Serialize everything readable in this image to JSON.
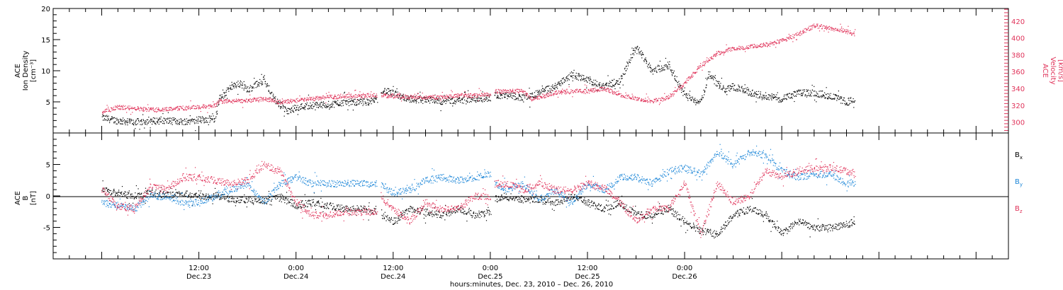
{
  "chart_data": [
    {
      "type": "scatter",
      "panel": "top",
      "ylabel_lines": [
        "ACE",
        "Ion Density",
        "[cm⁻³]"
      ],
      "y2label_lines": [
        "ACE",
        "Velocity",
        "[km/s]"
      ],
      "ylim": [
        0,
        20
      ],
      "yticks": [
        "20",
        "15",
        "10",
        "5"
      ],
      "y2lim": [
        287,
        435
      ],
      "y2ticks": [
        "420",
        "400",
        "380",
        "360",
        "340",
        "320",
        "300"
      ],
      "series": [
        {
          "axis": "left",
          "color": "#000000",
          "x": [
            0,
            2,
            4,
            6,
            8,
            10,
            12,
            14,
            14.5,
            16,
            17,
            18,
            20,
            21,
            22,
            23,
            24,
            26,
            28,
            30,
            32,
            34,
            34.5,
            38,
            40,
            42,
            44,
            46,
            48,
            48.5,
            52,
            53,
            54,
            56,
            58,
            60,
            62,
            64,
            66,
            68,
            70,
            72,
            74,
            75,
            76,
            77,
            78,
            80,
            82,
            84,
            86,
            88,
            90,
            92,
            93
          ],
          "y": [
            2.5,
            2,
            1.8,
            2,
            2,
            1.9,
            2.2,
            2.3,
            5.5,
            7.5,
            8,
            7,
            8.5,
            6,
            4.5,
            3.5,
            4.2,
            4.5,
            4.6,
            5,
            5,
            5.2,
            7,
            5.5,
            5.3,
            5.2,
            5.3,
            5.5,
            5.7,
            6.2,
            5.8,
            6,
            6.5,
            7.5,
            9.5,
            8.5,
            7.5,
            8.5,
            14,
            10,
            11,
            6,
            5,
            9.5,
            8,
            7,
            7.5,
            6.5,
            6,
            5.5,
            6.5,
            6.5,
            6,
            5,
            5.5
          ]
        },
        {
          "axis": "right",
          "color": "#e0335a",
          "x": [
            0,
            2,
            4,
            6,
            8,
            10,
            12,
            14,
            14.5,
            16,
            18,
            20,
            22,
            24,
            26,
            28,
            30,
            32,
            34,
            34.5,
            38,
            40,
            42,
            44,
            46,
            48,
            48.5,
            52,
            53,
            54,
            56,
            58,
            60,
            62,
            64,
            66,
            68,
            70,
            72,
            74,
            76,
            78,
            80,
            82,
            84,
            86,
            88,
            90,
            92,
            93
          ],
          "y": [
            312,
            318,
            317,
            315,
            316,
            317,
            318,
            320,
            325,
            325,
            326,
            328,
            324,
            326,
            328,
            330,
            331,
            332,
            332,
            332,
            330,
            330,
            330,
            332,
            332,
            333,
            337,
            337,
            328,
            330,
            335,
            337,
            337,
            340,
            333,
            328,
            325,
            330,
            347,
            368,
            382,
            388,
            390,
            392,
            397,
            405,
            415,
            412,
            408,
            405
          ]
        }
      ]
    },
    {
      "type": "scatter",
      "panel": "bottom",
      "ylabel_lines": [
        "ACE",
        "B",
        "[nT]"
      ],
      "ylim": [
        -10,
        10
      ],
      "yticks": [
        "5",
        "0",
        "-5"
      ],
      "legend": [
        "Bx",
        "By",
        "Bz"
      ],
      "series": [
        {
          "name": "Bx",
          "color": "#000000",
          "x": [
            0,
            2,
            4,
            6,
            8,
            10,
            12,
            14,
            16,
            18,
            20,
            22,
            24,
            26,
            28,
            30,
            32,
            34,
            34.5,
            36,
            38,
            40,
            42,
            44,
            46,
            48,
            48.5,
            50,
            52,
            54,
            56,
            58,
            60,
            62,
            64,
            66,
            68,
            70,
            72,
            74,
            76,
            78,
            80,
            82,
            84,
            86,
            88,
            90,
            92,
            93
          ],
          "y": [
            1,
            0.5,
            0,
            0.5,
            0.2,
            0.5,
            0,
            0,
            -0.5,
            -0.5,
            -0.8,
            -0.2,
            -1.5,
            -1,
            -1.5,
            -2,
            -2,
            -2.5,
            -3,
            -4,
            -2,
            -2.5,
            -3,
            -2,
            -3,
            -2.5,
            -0.5,
            0,
            -0.5,
            -0.5,
            -1,
            0,
            -1,
            -2,
            -1,
            -3,
            -3,
            -2,
            -4,
            -5.5,
            -6,
            -3,
            -2,
            -3,
            -6,
            -4,
            -5,
            -5,
            -4.5,
            -4
          ]
        },
        {
          "name": "By",
          "color": "#1e87d8",
          "x": [
            0,
            2,
            4,
            6,
            8,
            10,
            12,
            14,
            16,
            18,
            20,
            22,
            24,
            26,
            28,
            30,
            32,
            34,
            34.5,
            36,
            38,
            40,
            42,
            44,
            46,
            48,
            48.5,
            50,
            52,
            54,
            56,
            58,
            60,
            62,
            64,
            66,
            68,
            70,
            72,
            74,
            76,
            78,
            80,
            82,
            84,
            86,
            88,
            90,
            92,
            93
          ],
          "y": [
            -1,
            -1.5,
            -2,
            0,
            0,
            -1,
            -1,
            0,
            1,
            2,
            -1,
            2,
            3,
            2,
            2,
            2,
            2,
            2,
            2,
            0.5,
            1,
            2.5,
            3,
            2.5,
            3,
            3.5,
            2,
            1,
            2,
            -0.5,
            1,
            -1,
            2,
            1,
            3,
            3,
            2,
            4,
            4.5,
            3.5,
            7,
            5,
            7,
            6.5,
            4,
            3,
            3.5,
            3.5,
            2,
            2
          ]
        },
        {
          "name": "Bz",
          "color": "#e0335a",
          "x": [
            0,
            2,
            4,
            6,
            8,
            10,
            12,
            14,
            16,
            18,
            20,
            22,
            24,
            26,
            28,
            30,
            32,
            34,
            34.5,
            36,
            38,
            40,
            42,
            44,
            46,
            48,
            48.5,
            50,
            52,
            54,
            56,
            58,
            60,
            62,
            64,
            66,
            68,
            70,
            72,
            74,
            76,
            78,
            80,
            82,
            84,
            86,
            88,
            90,
            92,
            93
          ],
          "y": [
            1,
            -1.5,
            -2,
            1.5,
            1,
            3,
            3,
            2.5,
            2,
            2.5,
            5,
            4,
            -1,
            -3,
            -3,
            -2.5,
            -2.5,
            -2.5,
            0,
            -2,
            -4,
            -1,
            -2,
            -2,
            0,
            0,
            2,
            2,
            1,
            2,
            1,
            1,
            2,
            1.5,
            -1,
            -4,
            -2,
            -2,
            2,
            -6,
            2,
            -1,
            0,
            4,
            3,
            4,
            4.5,
            4.5,
            4,
            3.5
          ]
        }
      ]
    }
  ],
  "legend_labels": {
    "bx": {
      "letter": "B",
      "sub": "x",
      "color": "#000000"
    },
    "by": {
      "letter": "B",
      "sub": "y",
      "color": "#1e87d8"
    },
    "bz": {
      "letter": "B",
      "sub": "z",
      "color": "#e0335a"
    }
  },
  "x_axis": {
    "range_hours": [
      -6,
      112
    ],
    "major_ticks": [
      {
        "x": 12,
        "time": "12:00",
        "date": "Dec.23"
      },
      {
        "x": 24,
        "time": "0:00",
        "date": "Dec.24"
      },
      {
        "x": 36,
        "time": "12:00",
        "date": "Dec.24"
      },
      {
        "x": 48,
        "time": "0:00",
        "date": "Dec.25"
      },
      {
        "x": 60,
        "time": "12:00",
        "date": "Dec.25"
      },
      {
        "x": 72,
        "time": "0:00",
        "date": "Dec.26"
      }
    ],
    "title": "hours:minutes, Dec. 23, 2010 – Dec. 26, 2010"
  },
  "data_gaps_hours": [
    [
      34,
      34.5
    ],
    [
      48,
      48.5
    ]
  ],
  "colors": {
    "black": "#000000",
    "pink": "#e0335a",
    "blue": "#1e87d8"
  }
}
